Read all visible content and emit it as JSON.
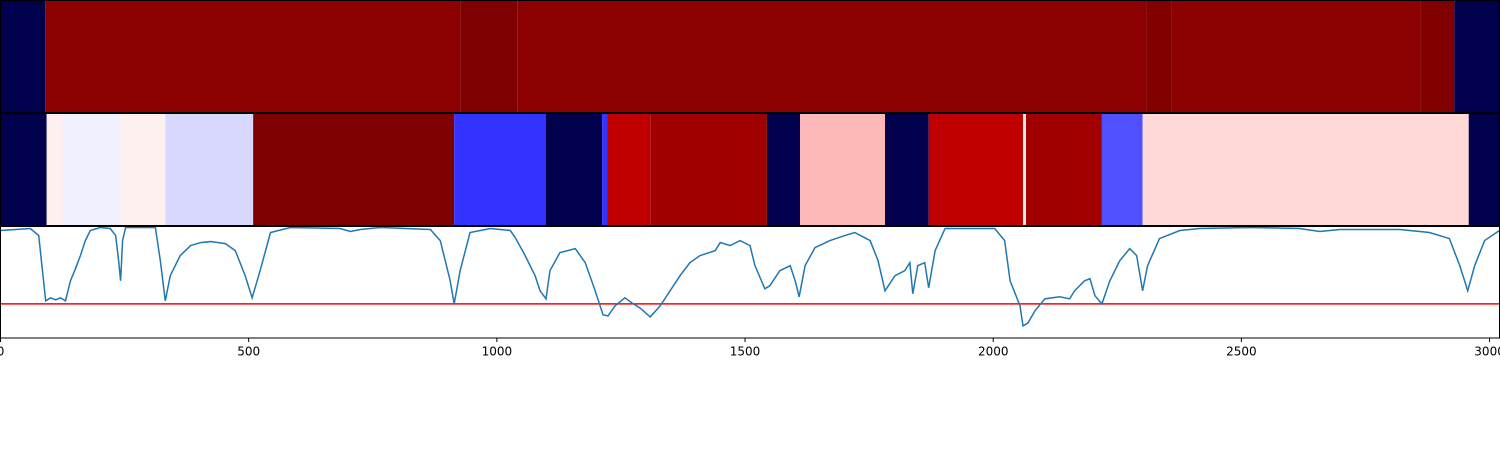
{
  "chart_data": [
    {
      "type": "heatmap",
      "xlim": [
        0,
        3020
      ],
      "edges": [
        0,
        90,
        926,
        1041,
        2309,
        2360,
        2861,
        2929,
        3020
      ],
      "colors": [
        "#00004c",
        "#8b0000",
        "#7f0000",
        "#8b0000",
        "#800000",
        "#8b0000",
        "#800000",
        "#00004c"
      ]
    },
    {
      "type": "heatmap",
      "xlim": [
        0,
        3020
      ],
      "edges": [
        0,
        93,
        125,
        242,
        332,
        509,
        914,
        1099,
        1212,
        1222,
        1309,
        1544,
        1611,
        1782,
        1870,
        2060,
        2066,
        2219,
        2301,
        2958,
        3020
      ],
      "colors": [
        "#00004c",
        "#fff0f0",
        "#f0f0ff",
        "#fff0f0",
        "#d8d8ff",
        "#7f0000",
        "#3333ff",
        "#00004c",
        "#3333ff",
        "#c00000",
        "#a00000",
        "#00004c",
        "#ffb8b8",
        "#00004c",
        "#c00000",
        "#ffe8e8",
        "#a00000",
        "#5050ff",
        "#ffd8d8",
        "#00004c"
      ]
    },
    {
      "type": "line",
      "xlim": [
        0,
        3020
      ],
      "ylim": [
        0,
        111
      ],
      "xticks": [
        0,
        500,
        1000,
        1500,
        2000,
        2500,
        3000
      ],
      "x": [
        0,
        60,
        77,
        91,
        101,
        111,
        121,
        131,
        141,
        151,
        161,
        171,
        181,
        201,
        221,
        232,
        238,
        242,
        246,
        252,
        312,
        322,
        332,
        342,
        362,
        383,
        403,
        423,
        453,
        473,
        493,
        507,
        523,
        544,
        584,
        684,
        705,
        725,
        765,
        866,
        886,
        906,
        914,
        926,
        946,
        987,
        1027,
        1037,
        1057,
        1077,
        1087,
        1099,
        1107,
        1127,
        1158,
        1178,
        1198,
        1214,
        1224,
        1238,
        1258,
        1272,
        1288,
        1309,
        1329,
        1349,
        1369,
        1389,
        1409,
        1440,
        1450,
        1470,
        1490,
        1510,
        1520,
        1540,
        1550,
        1570,
        1591,
        1601,
        1609,
        1621,
        1641,
        1671,
        1701,
        1721,
        1752,
        1768,
        1782,
        1802,
        1822,
        1832,
        1838,
        1848,
        1862,
        1870,
        1883,
        1903,
        1933,
        2003,
        2023,
        2034,
        2054,
        2060,
        2070,
        2084,
        2104,
        2134,
        2154,
        2164,
        2184,
        2195,
        2205,
        2219,
        2235,
        2255,
        2275,
        2289,
        2301,
        2311,
        2335,
        2376,
        2416,
        2517,
        2617,
        2658,
        2698,
        2819,
        2879,
        2919,
        2940,
        2956,
        2970,
        2990,
        3020
      ],
      "series": [
        {
          "color": "#1f77b4",
          "values": [
            107,
            109,
            102,
            37,
            40,
            38,
            40,
            37,
            57,
            69,
            82,
            97,
            107,
            110,
            109,
            102,
            77,
            57,
            97,
            110,
            110,
            77,
            37,
            62,
            82,
            92,
            95,
            96,
            94,
            87,
            62,
            40,
            67,
            105,
            110,
            109,
            106,
            108,
            110,
            108,
            97,
            57,
            34,
            67,
            105,
            109,
            107,
            100,
            82,
            62,
            47,
            39,
            67,
            85,
            89,
            75,
            47,
            23,
            22,
            32,
            40,
            35,
            30,
            21,
            32,
            47,
            62,
            75,
            82,
            87,
            95,
            92,
            97,
            92,
            72,
            49,
            52,
            67,
            72,
            57,
            41,
            72,
            90,
            97,
            102,
            105,
            97,
            77,
            47,
            62,
            67,
            75,
            44,
            72,
            75,
            50,
            87,
            109,
            109,
            109,
            97,
            57,
            32,
            12,
            15,
            27,
            39,
            41,
            39,
            47,
            57,
            59,
            42,
            34,
            57,
            77,
            89,
            82,
            47,
            72,
            99,
            107,
            109,
            110,
            109,
            106,
            108,
            108,
            105,
            99,
            72,
            47,
            72,
            97,
            107
          ]
        }
      ],
      "hline": {
        "value": 34,
        "color": "#ff0000"
      }
    }
  ]
}
